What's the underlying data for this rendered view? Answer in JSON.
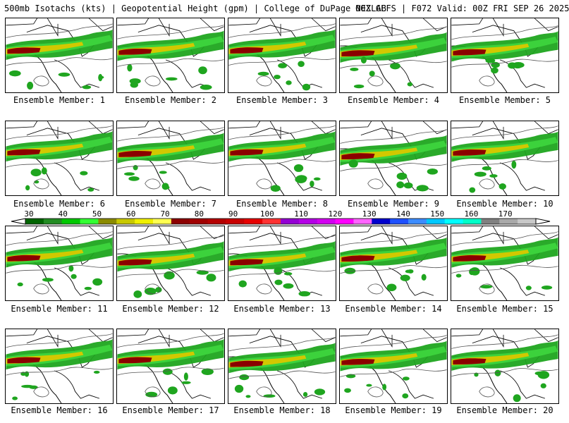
{
  "header": {
    "left": "500mb Isotachs (kts) | Geopotential Height (gpm) | College of DuPage NEXLAB",
    "right": "00Z GEFS | F072 Valid: 00Z FRI SEP 26 2025"
  },
  "members": [
    "Ensemble Member: 1",
    "Ensemble Member: 2",
    "Ensemble Member: 3",
    "Ensemble Member: 4",
    "Ensemble Member: 5",
    "Ensemble Member: 6",
    "Ensemble Member: 7",
    "Ensemble Member: 8",
    "Ensemble Member: 9",
    "Ensemble Member: 10",
    "Ensemble Member: 11",
    "Ensemble Member: 12",
    "Ensemble Member: 13",
    "Ensemble Member: 14",
    "Ensemble Member: 15",
    "Ensemble Member: 16",
    "Ensemble Member: 17",
    "Ensemble Member: 18",
    "Ensemble Member: 19",
    "Ensemble Member: 20"
  ],
  "colorbar": {
    "units": "kts",
    "labels": [
      "30",
      "40",
      "50",
      "60",
      "70",
      "80",
      "90",
      "100",
      "110",
      "120",
      "130",
      "140",
      "150",
      "160",
      "170"
    ],
    "colors": [
      "#006400",
      "#228b22",
      "#00c800",
      "#32ff32",
      "#8b8b00",
      "#c8c800",
      "#f0f000",
      "#ffff50",
      "#8b0000",
      "#a00000",
      "#b40000",
      "#c80000",
      "#e60000",
      "#ff3232",
      "#9400d3",
      "#b400e6",
      "#d200f0",
      "#ff00ff",
      "#ff64ff",
      "#0000cd",
      "#1e50ff",
      "#3c8cff",
      "#00c8ff",
      "#00ffff",
      "#00ffc8",
      "#808080",
      "#a9a9a9",
      "#c8c8c8"
    ]
  },
  "jet_colors": {
    "green": "#1fa51f",
    "light_green": "#3cd23c",
    "yellow": "#d2c800",
    "dark_red": "#8b0000"
  }
}
